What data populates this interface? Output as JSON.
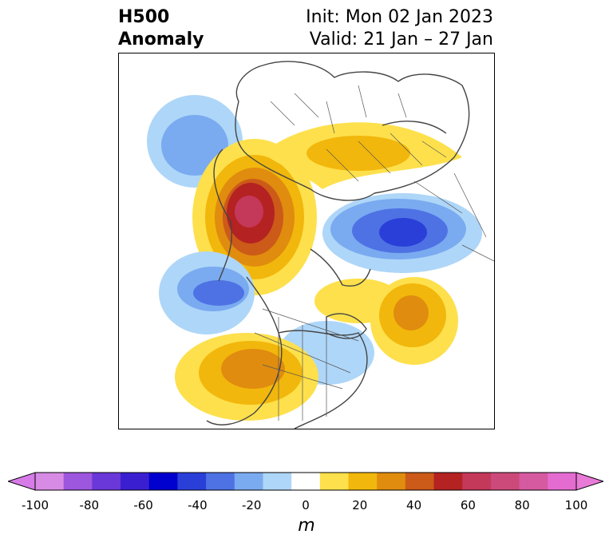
{
  "title": {
    "left_line1": "H500",
    "left_line2": "Anomaly",
    "right_line1": "Init: Mon 02 Jan 2023",
    "right_line2": "Valid: 21 Jan – 27 Jan"
  },
  "colorbar": {
    "unit": "m",
    "ticks": [
      "-100",
      "-80",
      "-60",
      "-40",
      "-20",
      "0",
      "20",
      "40",
      "60",
      "80",
      "100"
    ],
    "levels": [
      -100,
      -90,
      -80,
      -70,
      -60,
      -50,
      -40,
      -30,
      -20,
      -10,
      10,
      20,
      30,
      40,
      50,
      60,
      70,
      80,
      90,
      100
    ],
    "colors": [
      "#d88be4",
      "#9d56de",
      "#6a37d8",
      "#3a1fd0",
      "#0000cf",
      "#2a3fd8",
      "#4e72e4",
      "#7aaaf0",
      "#aed6f8",
      "#ffffff",
      "#fde04c",
      "#f2b70c",
      "#e08c0f",
      "#cc5a18",
      "#b52222",
      "#c4385a",
      "#cc4a7a",
      "#d65aa0",
      "#e46cd0"
    ],
    "low_extend_color": "#d77be9",
    "high_extend_color": "#e97ad8"
  },
  "anomaly_centers": [
    {
      "id": "ridge-north-pacific-arctic",
      "sign": "positive",
      "max_m": 60
    },
    {
      "id": "trough-siberia",
      "sign": "negative",
      "max_m": -50
    },
    {
      "id": "ridge-north-atlantic",
      "sign": "positive",
      "max_m": 30
    },
    {
      "id": "trough-gulf-of-alaska",
      "sign": "negative",
      "max_m": -40
    },
    {
      "id": "ridge-western-us",
      "sign": "positive",
      "max_m": 30
    },
    {
      "id": "ridge-arctic-russia",
      "sign": "positive",
      "max_m": 20
    },
    {
      "id": "trough-bering",
      "sign": "negative",
      "max_m": -30
    }
  ]
}
